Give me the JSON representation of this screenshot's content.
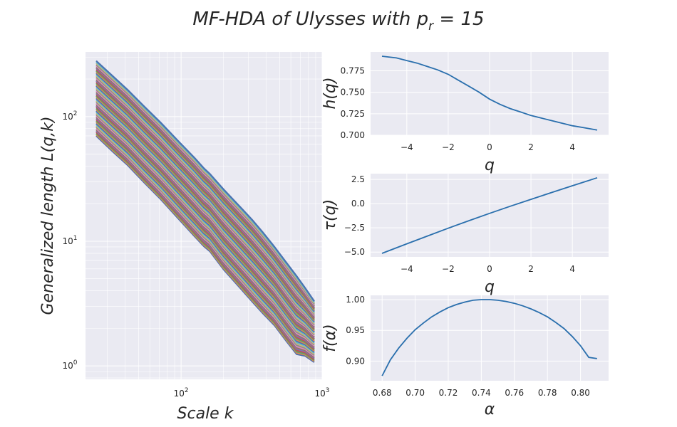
{
  "figure": {
    "title_prefix": "MF-HDA of Ulysses with p",
    "title_sub": "r",
    "title_suffix": " = 15"
  },
  "chart_data": [
    {
      "type": "line",
      "name_hint": "generalized-length",
      "xlabel": "Scale k",
      "ylabel": "Generalized length L(q,k)",
      "xscale": "log",
      "yscale": "log",
      "xlim": [
        21,
        1000
      ],
      "ylim": [
        0.78,
        330
      ],
      "xticks": [
        {
          "value": 100,
          "base": "10",
          "exp": "2"
        },
        {
          "value": 1000,
          "base": "10",
          "exp": "3"
        }
      ],
      "yticks": [
        {
          "value": 1,
          "base": "10",
          "exp": "0"
        },
        {
          "value": 10,
          "base": "10",
          "exp": "1"
        },
        {
          "value": 100,
          "base": "10",
          "exp": "2"
        }
      ],
      "x": [
        25,
        33,
        42,
        55,
        72,
        95,
        125,
        145,
        160,
        200,
        270,
        320,
        380,
        460,
        560,
        660,
        760,
        880
      ],
      "top_curve": [
        280,
        210,
        163,
        120,
        89,
        64,
        46.5,
        38.5,
        34.7,
        26.1,
        18.2,
        14.8,
        11.8,
        9.0,
        6.7,
        5.25,
        4.2,
        3.3
      ],
      "bottom_curve": [
        70,
        52,
        40.5,
        29.4,
        21.6,
        15.3,
        10.9,
        9.1,
        8.3,
        5.94,
        4.06,
        3.27,
        2.64,
        2.11,
        1.57,
        1.24,
        1.2,
        1.07
      ],
      "n_series": 61,
      "series_colors": [
        "#4c72b0",
        "#dd8452",
        "#55a868",
        "#c44e52",
        "#8172b3",
        "#937860",
        "#da8bc3",
        "#8c8c8c",
        "#ccb974",
        "#64b5cd"
      ],
      "grid": true
    },
    {
      "type": "line",
      "name_hint": "h-of-q",
      "xlabel": "q",
      "ylabel": "h(q)",
      "xlim": [
        -5.75,
        5.75
      ],
      "ylim": [
        0.7,
        0.797
      ],
      "xticks": [
        -4,
        -2,
        0,
        2,
        4
      ],
      "xticklabels": [
        "−4",
        "−2",
        "0",
        "2",
        "4"
      ],
      "yticks": [
        0.7,
        0.725,
        0.75,
        0.775
      ],
      "yticklabels": [
        "0.700",
        "0.725",
        "0.750",
        "0.775"
      ],
      "x": [
        -5.2,
        -4.5,
        -4,
        -3.5,
        -3,
        -2.5,
        -2,
        -1.5,
        -1,
        -0.5,
        0,
        0.5,
        1,
        1.5,
        2,
        2.5,
        3,
        3.5,
        4,
        4.5,
        5.2
      ],
      "y": [
        0.792,
        0.79,
        0.787,
        0.784,
        0.78,
        0.776,
        0.771,
        0.764,
        0.757,
        0.75,
        0.742,
        0.736,
        0.731,
        0.727,
        0.723,
        0.72,
        0.717,
        0.714,
        0.711,
        0.709,
        0.706
      ],
      "color": "#2a6fad",
      "grid": true
    },
    {
      "type": "line",
      "name_hint": "tau-of-q",
      "xlabel": "q",
      "ylabel": "τ(q)",
      "xlim": [
        -5.75,
        5.75
      ],
      "ylim": [
        -5.5,
        3.1
      ],
      "xticks": [
        -4,
        -2,
        0,
        2,
        4
      ],
      "xticklabels": [
        "−4",
        "−2",
        "0",
        "2",
        "4"
      ],
      "yticks": [
        -5,
        -2.5,
        0,
        2.5
      ],
      "yticklabels": [
        "−5.0",
        "−2.5",
        "0.0",
        "2.5"
      ],
      "x": [
        -5.2,
        -4,
        -3,
        -2,
        -1,
        0,
        1,
        2,
        3,
        4,
        5.2
      ],
      "y": [
        -5.13,
        -4.15,
        -3.34,
        -2.54,
        -1.76,
        -1.0,
        -0.27,
        0.45,
        1.15,
        1.85,
        2.67
      ],
      "color": "#2a6fad",
      "grid": true
    },
    {
      "type": "line",
      "name_hint": "f-of-alpha",
      "xlabel": "α",
      "ylabel": "f(α)",
      "xlim": [
        0.673,
        0.817
      ],
      "ylim": [
        0.868,
        1.007
      ],
      "xticks": [
        0.68,
        0.7,
        0.72,
        0.74,
        0.76,
        0.78,
        0.8
      ],
      "xticklabels": [
        "0.68",
        "0.70",
        "0.72",
        "0.74",
        "0.76",
        "0.78",
        "0.80"
      ],
      "yticks": [
        0.9,
        0.95,
        1.0
      ],
      "yticklabels": [
        "0.90",
        "0.95",
        "1.00"
      ],
      "x": [
        0.68,
        0.685,
        0.69,
        0.695,
        0.7,
        0.705,
        0.71,
        0.715,
        0.72,
        0.725,
        0.73,
        0.735,
        0.74,
        0.745,
        0.75,
        0.755,
        0.76,
        0.765,
        0.77,
        0.775,
        0.78,
        0.785,
        0.79,
        0.795,
        0.8,
        0.805,
        0.81
      ],
      "y": [
        0.876,
        0.902,
        0.921,
        0.937,
        0.951,
        0.962,
        0.972,
        0.98,
        0.987,
        0.992,
        0.996,
        0.999,
        1.0,
        1.0,
        0.999,
        0.997,
        0.994,
        0.99,
        0.985,
        0.979,
        0.972,
        0.963,
        0.953,
        0.94,
        0.925,
        0.906,
        0.904
      ],
      "color": "#2a6fad",
      "grid": true
    }
  ]
}
